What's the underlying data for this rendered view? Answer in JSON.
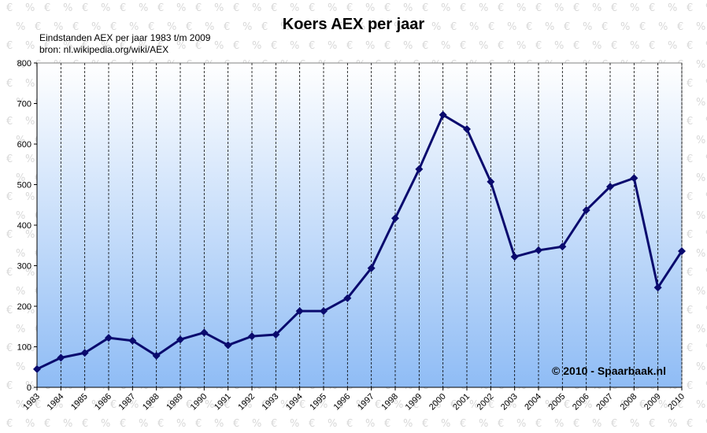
{
  "chart_data": {
    "type": "line",
    "title": "Koers AEX per jaar",
    "subtitle_lines": [
      "Eindstanden AEX per jaar 1983 t/m 2009",
      "bron: nl.wikipedia.org/wiki/AEX"
    ],
    "credit": "© 2010 - Spaarbaak.nl",
    "categories": [
      "1983",
      "1984",
      "1985",
      "1986",
      "1987",
      "1988",
      "1989",
      "1990",
      "1991",
      "1992",
      "1993",
      "1994",
      "1995",
      "1996",
      "1997",
      "1998",
      "1999",
      "2000",
      "2001",
      "2002",
      "2003",
      "2004",
      "2005",
      "2006",
      "2007",
      "2008",
      "2009",
      "2010"
    ],
    "series": [
      {
        "values": [
          45,
          73,
          85,
          122,
          115,
          78,
          118,
          135,
          104,
          126,
          130,
          188,
          188,
          220,
          294,
          417,
          538,
          672,
          637,
          507,
          322,
          338,
          347,
          437,
          495,
          516,
          246,
          336
        ]
      }
    ],
    "ylim": [
      0,
      800
    ],
    "yticks": [
      0,
      100,
      200,
      300,
      400,
      500,
      600,
      700,
      800
    ],
    "grid": "vertical dashed",
    "legend": "none"
  },
  "colors": {
    "line": "#0a0a6e",
    "plot_gradient_top": "#ffffff",
    "plot_gradient_bottom": "#8fbcf5",
    "grid": "#000000",
    "watermark": "#d8d8d8"
  }
}
